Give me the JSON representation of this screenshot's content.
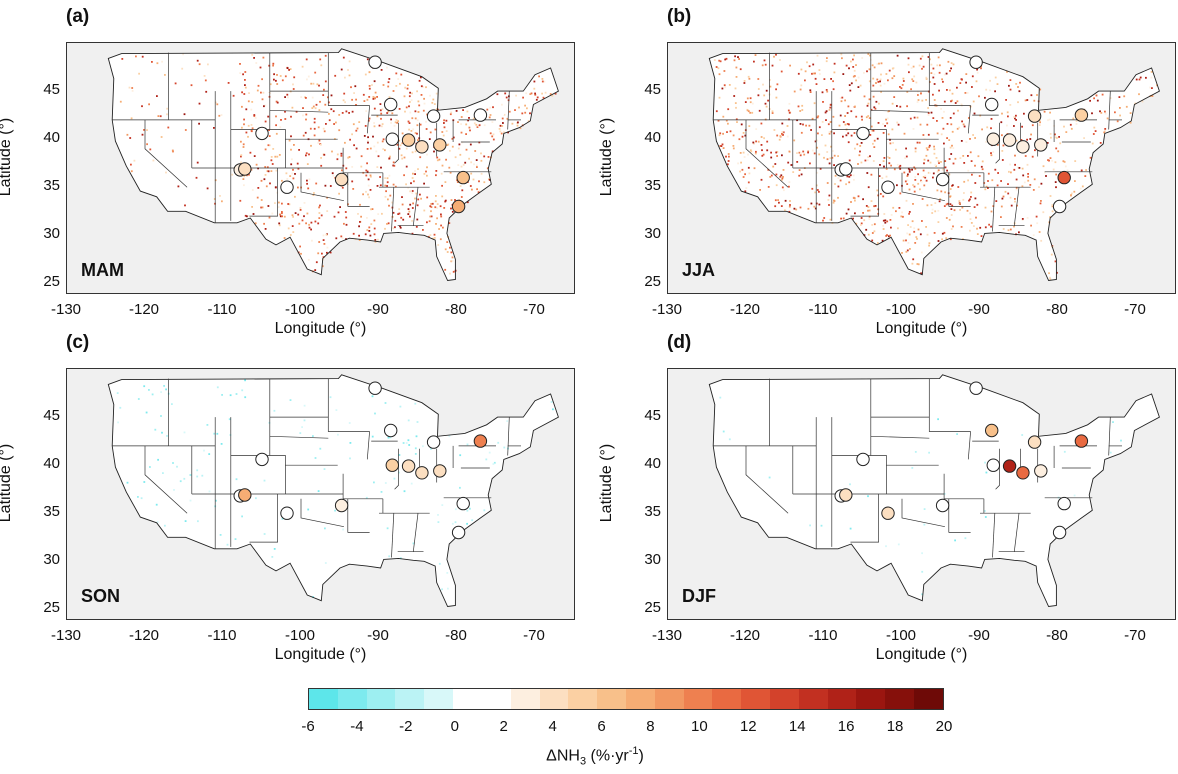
{
  "panels": [
    {
      "letter": "(a)",
      "season": "MAM"
    },
    {
      "letter": "(b)",
      "season": "JJA"
    },
    {
      "letter": "(c)",
      "season": "SON"
    },
    {
      "letter": "(d)",
      "season": "DJF"
    }
  ],
  "axes": {
    "xlabel": "Longitude (°)",
    "ylabel": "Latitude (°)",
    "xlim": [
      -130,
      -65
    ],
    "ylim": [
      24,
      50
    ],
    "xticks": [
      "-130",
      "-120",
      "-110",
      "-100",
      "-90",
      "-80",
      "-70"
    ],
    "yticks": [
      "25",
      "30",
      "35",
      "40",
      "45"
    ]
  },
  "colorbar": {
    "label_prefix": "ΔNH",
    "label_sub": "3",
    "label_units_a": " (%·yr",
    "label_sup": "-1",
    "label_units_b": ")",
    "range": [
      -6,
      20
    ],
    "ticks": [
      "-6",
      "-4",
      "-2",
      "0",
      "2",
      "4",
      "6",
      "8",
      "10",
      "12",
      "14",
      "16",
      "18",
      "20"
    ],
    "colors": [
      "#5de6ea",
      "#7deaee",
      "#9deff1",
      "#bbf3f5",
      "#d8f8f9",
      "#ffffff",
      "#ffffff",
      "#fdefe0",
      "#fcdfc1",
      "#fbd0a3",
      "#f8c08a",
      "#f6ad74",
      "#f29862",
      "#ee8050",
      "#e96a41",
      "#e05535",
      "#d3422b",
      "#c23021",
      "#b02218",
      "#9b1610",
      "#86100b",
      "#6e0a07"
    ]
  },
  "stations": [
    {
      "lon": -90.5,
      "lat": 48.0
    },
    {
      "lon": -88.5,
      "lat": 43.6
    },
    {
      "lon": -83.0,
      "lat": 42.4
    },
    {
      "lon": -77.0,
      "lat": 42.5
    },
    {
      "lon": -105.0,
      "lat": 40.6
    },
    {
      "lon": -88.3,
      "lat": 40.0
    },
    {
      "lon": -86.2,
      "lat": 39.9
    },
    {
      "lon": -84.5,
      "lat": 39.2
    },
    {
      "lon": -82.2,
      "lat": 39.4
    },
    {
      "lon": -107.8,
      "lat": 36.8
    },
    {
      "lon": -107.2,
      "lat": 36.9
    },
    {
      "lon": -101.8,
      "lat": 35.0
    },
    {
      "lon": -94.8,
      "lat": 35.8
    },
    {
      "lon": -79.2,
      "lat": 36.0
    },
    {
      "lon": -79.8,
      "lat": 33.0
    }
  ],
  "station_values": [
    [
      0,
      0,
      0,
      0,
      0,
      0,
      5,
      4,
      5,
      3,
      4,
      0,
      4,
      6,
      7
    ],
    [
      0,
      0,
      4,
      5,
      0,
      3,
      3,
      3,
      3,
      0,
      0,
      0,
      0,
      12,
      0
    ],
    [
      0,
      0,
      0,
      10,
      0,
      5,
      4,
      4,
      4,
      0,
      7,
      0,
      3,
      0,
      0
    ],
    [
      0,
      6,
      4,
      11,
      0,
      0,
      16,
      11,
      3,
      0,
      4,
      4,
      2,
      0,
      0
    ]
  ],
  "pixel_intensity": [
    {
      "east": 0.95,
      "plains": 0.7,
      "west": 0.15,
      "sign": 1
    },
    {
      "east": 0.6,
      "plains": 0.85,
      "west": 0.7,
      "sign": 1
    },
    {
      "east": 0.12,
      "plains": 0.06,
      "west": 0.12,
      "sign": -1
    },
    {
      "east": 0.02,
      "plains": 0.02,
      "west": 0.01,
      "sign": -1
    }
  ]
}
